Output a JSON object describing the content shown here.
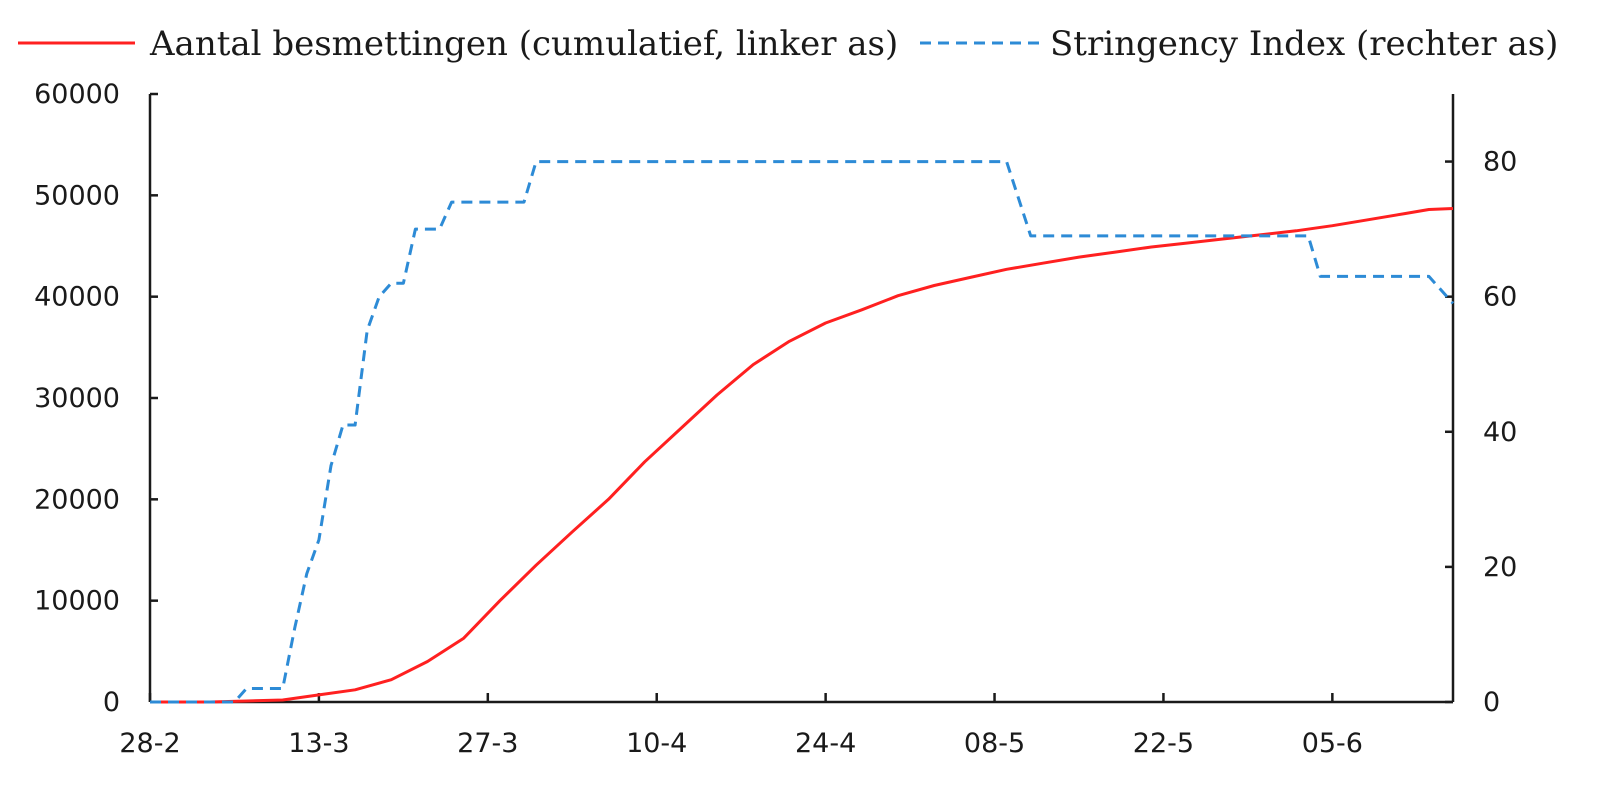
{
  "chart_data": {
    "type": "line",
    "title": "",
    "legend": {
      "placement": "top"
    },
    "grid": false,
    "x_axis": {
      "start": "28-2",
      "end": "15-6",
      "ticks": [
        "28-2",
        "13-3",
        "27-3",
        "10-4",
        "24-4",
        "08-5",
        "22-5",
        "05-6"
      ]
    },
    "y_left": {
      "label": "",
      "ylim": [
        0,
        60000
      ],
      "ticks": [
        "0",
        "10000",
        "20000",
        "30000",
        "40000",
        "50000",
        "60000"
      ]
    },
    "y_right": {
      "label": "",
      "ylim": [
        0,
        90
      ],
      "ticks": [
        "0",
        "20",
        "40",
        "60",
        "80"
      ]
    },
    "series": [
      {
        "name": "Aantal besmettingen (cumulatief, linker as)",
        "axis": "left",
        "color": "#ff2020",
        "style": "solid",
        "points": [
          [
            "28-2",
            0
          ],
          [
            "01-3",
            0
          ],
          [
            "04-3",
            0
          ],
          [
            "07-3",
            100
          ],
          [
            "10-3",
            200
          ],
          [
            "13-3",
            700
          ],
          [
            "16-3",
            1200
          ],
          [
            "19-3",
            2200
          ],
          [
            "22-3",
            4000
          ],
          [
            "25-3",
            6300
          ],
          [
            "28-3",
            10000
          ],
          [
            "31-3",
            13500
          ],
          [
            "03-4",
            16800
          ],
          [
            "06-4",
            20000
          ],
          [
            "09-4",
            23700
          ],
          [
            "12-4",
            27000
          ],
          [
            "15-4",
            30300
          ],
          [
            "18-4",
            33300
          ],
          [
            "21-4",
            35600
          ],
          [
            "24-4",
            37400
          ],
          [
            "27-4",
            38700
          ],
          [
            "30-4",
            40100
          ],
          [
            "03-5",
            41100
          ],
          [
            "06-5",
            41900
          ],
          [
            "09-5",
            42700
          ],
          [
            "12-5",
            43300
          ],
          [
            "15-5",
            43900
          ],
          [
            "18-5",
            44400
          ],
          [
            "21-5",
            44900
          ],
          [
            "24-5",
            45300
          ],
          [
            "27-5",
            45700
          ],
          [
            "30-5",
            46100
          ],
          [
            "02-6",
            46500
          ],
          [
            "05-6",
            47000
          ],
          [
            "08-6",
            47600
          ],
          [
            "11-6",
            48200
          ],
          [
            "13-6",
            48600
          ],
          [
            "15-6",
            48700
          ]
        ]
      },
      {
        "name": "Stringency Index (rechter as)",
        "axis": "right",
        "color": "#2d8bd6",
        "style": "dashed",
        "points": [
          [
            "28-2",
            0
          ],
          [
            "06-3",
            0
          ],
          [
            "07-3",
            2
          ],
          [
            "10-3",
            2
          ],
          [
            "11-3",
            11
          ],
          [
            "12-3",
            19
          ],
          [
            "13-3",
            24
          ],
          [
            "14-3",
            35
          ],
          [
            "15-3",
            41
          ],
          [
            "16-3",
            41
          ],
          [
            "17-3",
            55
          ],
          [
            "18-3",
            60
          ],
          [
            "19-3",
            62
          ],
          [
            "20-3",
            62
          ],
          [
            "21-3",
            70
          ],
          [
            "23-3",
            70
          ],
          [
            "24-3",
            74
          ],
          [
            "30-3",
            74
          ],
          [
            "31-3",
            80
          ],
          [
            "09-5",
            80
          ],
          [
            "11-5",
            69
          ],
          [
            "31-5",
            69
          ],
          [
            "03-6",
            69
          ],
          [
            "04-6",
            63
          ],
          [
            "13-6",
            63
          ],
          [
            "15-6",
            59
          ]
        ]
      }
    ]
  }
}
